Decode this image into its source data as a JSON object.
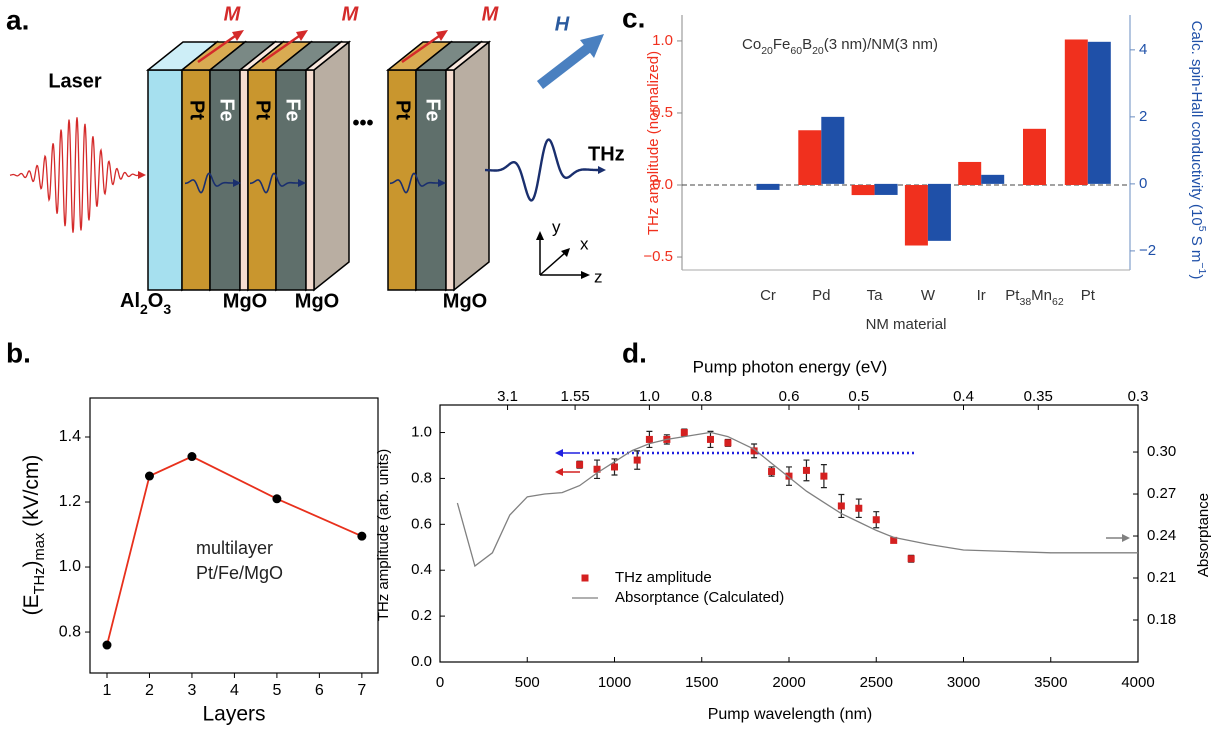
{
  "labels": [
    "a.",
    "b.",
    "c.",
    "d."
  ],
  "diagram": {
    "laser": "Laser",
    "magnetization": "M",
    "field": "H",
    "layers": [
      "Pt",
      "Fe"
    ],
    "output": "THz",
    "substrate": [
      "Al",
      "2",
      "O",
      "3"
    ],
    "capping": "MgO",
    "ellipsis": "•••",
    "axes": [
      "y",
      "x",
      "z"
    ]
  },
  "chart_data": [
    {
      "type": "bar",
      "title": [
        "Co",
        "20",
        "Fe",
        "60",
        "B",
        "20",
        "(3 nm)/NM(3 nm)"
      ],
      "categories": [
        "Cr",
        "Pd",
        "Ta",
        "W",
        "Ir",
        [
          "Pt",
          "38",
          "Mn",
          "62"
        ],
        "Pt"
      ],
      "x_label": "NM material",
      "y_label": "THz amplitude (normalized)",
      "y2_label": [
        "Calc. spin-Hall conductivity (10",
        "5",
        " S m",
        "−1",
        ")"
      ],
      "ylim": [
        -0.59,
        1.18
      ],
      "yticks": [
        {
          "value": -0.5,
          "label": "−0.5"
        },
        {
          "value": 0,
          "label": "0.0"
        },
        0.5,
        {
          "value": 1,
          "label": "1.0"
        }
      ],
      "y2lim": [
        -2.57,
        5.04
      ],
      "y2ticks": [
        {
          "value": -2,
          "label": "−2"
        },
        0,
        2,
        4
      ],
      "zero_line": "dashed",
      "series": [
        {
          "color": "#f0301e",
          "values": [
            null,
            0.38,
            -0.07,
            -0.42,
            0.16,
            0.39,
            1.01
          ]
        },
        {
          "color": "#1f50a8",
          "axis": "y2",
          "values": [
            -0.18,
            2.0,
            -0.33,
            -1.7,
            0.27,
            null,
            4.24
          ]
        }
      ]
    },
    {
      "type": "line",
      "x_label": "Layers",
      "y_label": [
        "(E",
        "THz",
        ")",
        "max",
        " (kV/cm)"
      ],
      "annotation": [
        "multilayer",
        "Pt/Fe/MgO"
      ],
      "x": [
        1,
        2,
        3,
        5,
        7
      ],
      "values": [
        0.76,
        1.28,
        1.34,
        1.21,
        1.095
      ],
      "color": "#e8301c",
      "marker_color": "#000000",
      "xlim": [
        0.6,
        7.38
      ],
      "xticks": [
        1,
        2,
        3,
        4,
        5,
        6,
        7
      ],
      "ylim": [
        0.674,
        1.52
      ],
      "yticks": [
        0.8,
        {
          "value": 1,
          "label": "1.0"
        },
        1.2,
        1.4
      ]
    },
    {
      "type": "scatter",
      "x_label": "Pump wavelength (nm)",
      "x2_label": "Pump photon energy (eV)",
      "y_label": "THz amplitude (arb. units)",
      "y2_label": "Absorptance",
      "xlim": [
        0,
        4000
      ],
      "xticks": [
        0,
        500,
        1000,
        1500,
        2000,
        2500,
        3000,
        3500,
        4000
      ],
      "x2scale": "reciprocal",
      "x2lim": [
        null,
        0.3
      ],
      "x2ticks": [
        3.1,
        1.55,
        {
          "value": 1,
          "label": "1.0"
        },
        0.8,
        0.6,
        0.5,
        0.4,
        0.35,
        0.3
      ],
      "ylim": [
        0,
        1.12
      ],
      "yticks": [
        {
          "value": 0,
          "label": "0.0"
        },
        0.2,
        0.4,
        0.6,
        0.8,
        {
          "value": 1,
          "label": "1.0"
        }
      ],
      "y2lim": [
        0.15,
        0.3336
      ],
      "y2ticks": [
        0.18,
        0.21,
        0.24,
        0.27,
        {
          "value": 0.3,
          "label": "0.30"
        }
      ],
      "legend": "lower left",
      "series": [
        {
          "name": "THz amplitude",
          "color": "#d42020",
          "x": [
            800,
            900,
            1000,
            1130,
            1200,
            1300,
            1400,
            1550,
            1650,
            1800,
            1900,
            2000,
            2100,
            2200,
            2300,
            2400,
            2500,
            2600,
            2700
          ],
          "values": [
            0.86,
            0.84,
            0.85,
            0.88,
            0.97,
            0.97,
            1.0,
            0.97,
            0.955,
            0.92,
            0.83,
            0.81,
            0.835,
            0.81,
            0.68,
            0.67,
            0.62,
            0.53,
            0.45
          ],
          "errors": [
            0.015,
            0.04,
            0.035,
            0.04,
            0.035,
            0.02,
            0.015,
            0.035,
            0.015,
            0.03,
            0.02,
            0.04,
            0.045,
            0.05,
            0.05,
            0.04,
            0.035,
            0.01,
            0.015
          ]
        },
        {
          "name": "Absorptance (Calculated)",
          "color": "#808080",
          "axis": "y2",
          "type": "line",
          "x": [
            100,
            200,
            300,
            400,
            500,
            600,
            700,
            800,
            900,
            1000,
            1100,
            1200,
            1300,
            1400,
            1550,
            1650,
            1800,
            1900,
            2000,
            2100,
            2200,
            2300,
            2400,
            2500,
            2600,
            2800,
            3000,
            3500,
            4000
          ],
          "values": [
            0.2636,
            0.2186,
            0.228,
            0.255,
            0.268,
            0.27,
            0.271,
            0.276,
            0.285,
            0.293,
            0.301,
            0.306,
            0.309,
            0.311,
            0.314,
            0.311,
            0.302,
            0.292,
            0.282,
            0.272,
            0.264,
            0.256,
            0.25,
            0.244,
            0.239,
            0.234,
            0.23,
            0.228,
            0.228
          ]
        }
      ]
    }
  ]
}
